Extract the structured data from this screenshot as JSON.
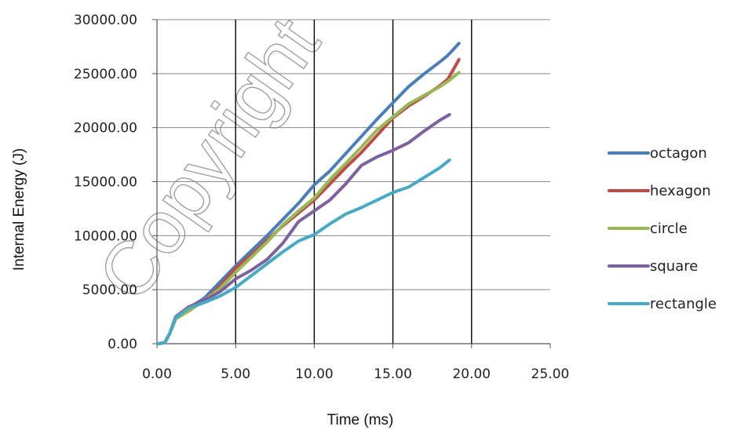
{
  "watermark": "Copyright",
  "chart_data": {
    "type": "line",
    "xlabel": "Time (ms)",
    "ylabel": "Internal Energy (J)",
    "xlim": [
      0,
      25
    ],
    "ylim": [
      0,
      30000
    ],
    "x_ticks": [
      "0.00",
      "5.00",
      "10.00",
      "15.00",
      "20.00",
      "25.00"
    ],
    "y_ticks": [
      "0.00",
      "5000.00",
      "10000.00",
      "15000.00",
      "20000.00",
      "25000.00",
      "30000.00"
    ],
    "grid": "vertical and horizontal gridlines",
    "legend_position": "right",
    "series": [
      {
        "name": "octagon",
        "color": "#4a7ebb",
        "x": [
          0.1,
          0.5,
          0.8,
          1.2,
          2,
          3,
          4,
          5,
          6,
          7,
          8,
          9,
          10,
          11,
          12,
          13,
          14,
          15,
          16,
          17,
          18,
          18.5,
          19.2
        ],
        "y": [
          0,
          100,
          900,
          2500,
          3300,
          4200,
          5700,
          7200,
          8600,
          10000,
          11500,
          13000,
          14700,
          16000,
          17600,
          19200,
          20800,
          22300,
          23800,
          25000,
          26100,
          26700,
          27800
        ]
      },
      {
        "name": "hexagon",
        "color": "#be4b48",
        "x": [
          0.1,
          0.5,
          0.8,
          1.2,
          2,
          3,
          4,
          5,
          6,
          7,
          8,
          9,
          10,
          11,
          12,
          13,
          14,
          15,
          16,
          17,
          18,
          18.5,
          19.2
        ],
        "y": [
          0,
          100,
          900,
          2500,
          3400,
          4000,
          5300,
          7000,
          8200,
          9600,
          10900,
          12100,
          13300,
          14800,
          16300,
          17700,
          19300,
          20900,
          22000,
          22900,
          23900,
          24500,
          26300
        ]
      },
      {
        "name": "circle",
        "color": "#98b954",
        "x": [
          0.1,
          0.5,
          0.8,
          1.2,
          2,
          3,
          4,
          5,
          6,
          7,
          8,
          9,
          10,
          11,
          12,
          13,
          14,
          15,
          16,
          17,
          18,
          18.5,
          19.2
        ],
        "y": [
          0,
          100,
          900,
          2300,
          3000,
          4000,
          5100,
          6600,
          8000,
          9400,
          11000,
          12300,
          13500,
          15200,
          16700,
          18200,
          19800,
          21000,
          22200,
          23000,
          23800,
          24300,
          25100
        ]
      },
      {
        "name": "square",
        "color": "#7d60a0",
        "x": [
          0.1,
          0.5,
          0.8,
          1.2,
          2,
          3,
          4,
          5,
          6,
          7,
          8,
          9,
          10,
          11,
          12,
          13,
          14,
          15,
          16,
          17,
          18,
          18.6
        ],
        "y": [
          0,
          100,
          900,
          2500,
          3300,
          4000,
          4800,
          6000,
          6800,
          7800,
          9300,
          11300,
          12300,
          13300,
          14800,
          16500,
          17300,
          17900,
          18600,
          19700,
          20700,
          21200
        ]
      },
      {
        "name": "rectangle",
        "color": "#46aac5",
        "x": [
          0.1,
          0.5,
          0.8,
          1.2,
          2,
          3,
          4,
          5,
          6,
          7,
          8,
          9,
          10,
          11,
          12,
          13,
          14,
          15,
          16,
          17,
          18,
          18.6
        ],
        "y": [
          0,
          100,
          900,
          2400,
          3300,
          3800,
          4400,
          5200,
          6300,
          7400,
          8500,
          9500,
          10100,
          11100,
          12000,
          12600,
          13300,
          14000,
          14500,
          15400,
          16300,
          17000
        ]
      }
    ]
  }
}
